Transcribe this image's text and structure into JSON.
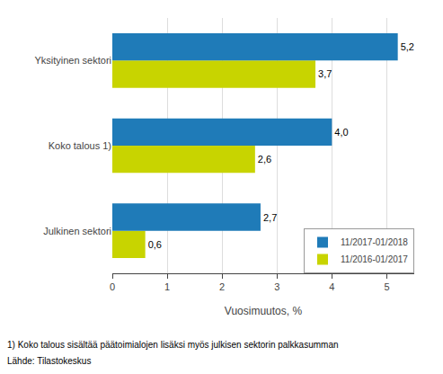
{
  "chart_data": {
    "type": "bar",
    "orientation": "horizontal",
    "categories": [
      "Julkinen sektori",
      "Koko talous 1)",
      "Yksityinen sektori"
    ],
    "series": [
      {
        "name": "11/2017-01/2018",
        "color": "#1F7BB8",
        "values": [
          2.7,
          4.0,
          5.2
        ],
        "value_labels": [
          "2,7",
          "4,0",
          "5,2"
        ]
      },
      {
        "name": "11/2016-01/2017",
        "color": "#C8D400",
        "values": [
          0.6,
          2.6,
          3.7
        ],
        "value_labels": [
          "0,6",
          "2,6",
          "3,7"
        ]
      }
    ],
    "xlabel": "Vuosimuutos, %",
    "xlim": [
      0,
      5.5
    ],
    "xticks": [
      0,
      1,
      2,
      3,
      4,
      5
    ],
    "grid": "x",
    "legend": "lower right",
    "data_labels": true,
    "annotations": [
      "1) Koko talous sisältää päätoimialojen lisäksi myös julkisen sektorin palkkasumman",
      "Lähde: Tilastokeskus"
    ]
  }
}
